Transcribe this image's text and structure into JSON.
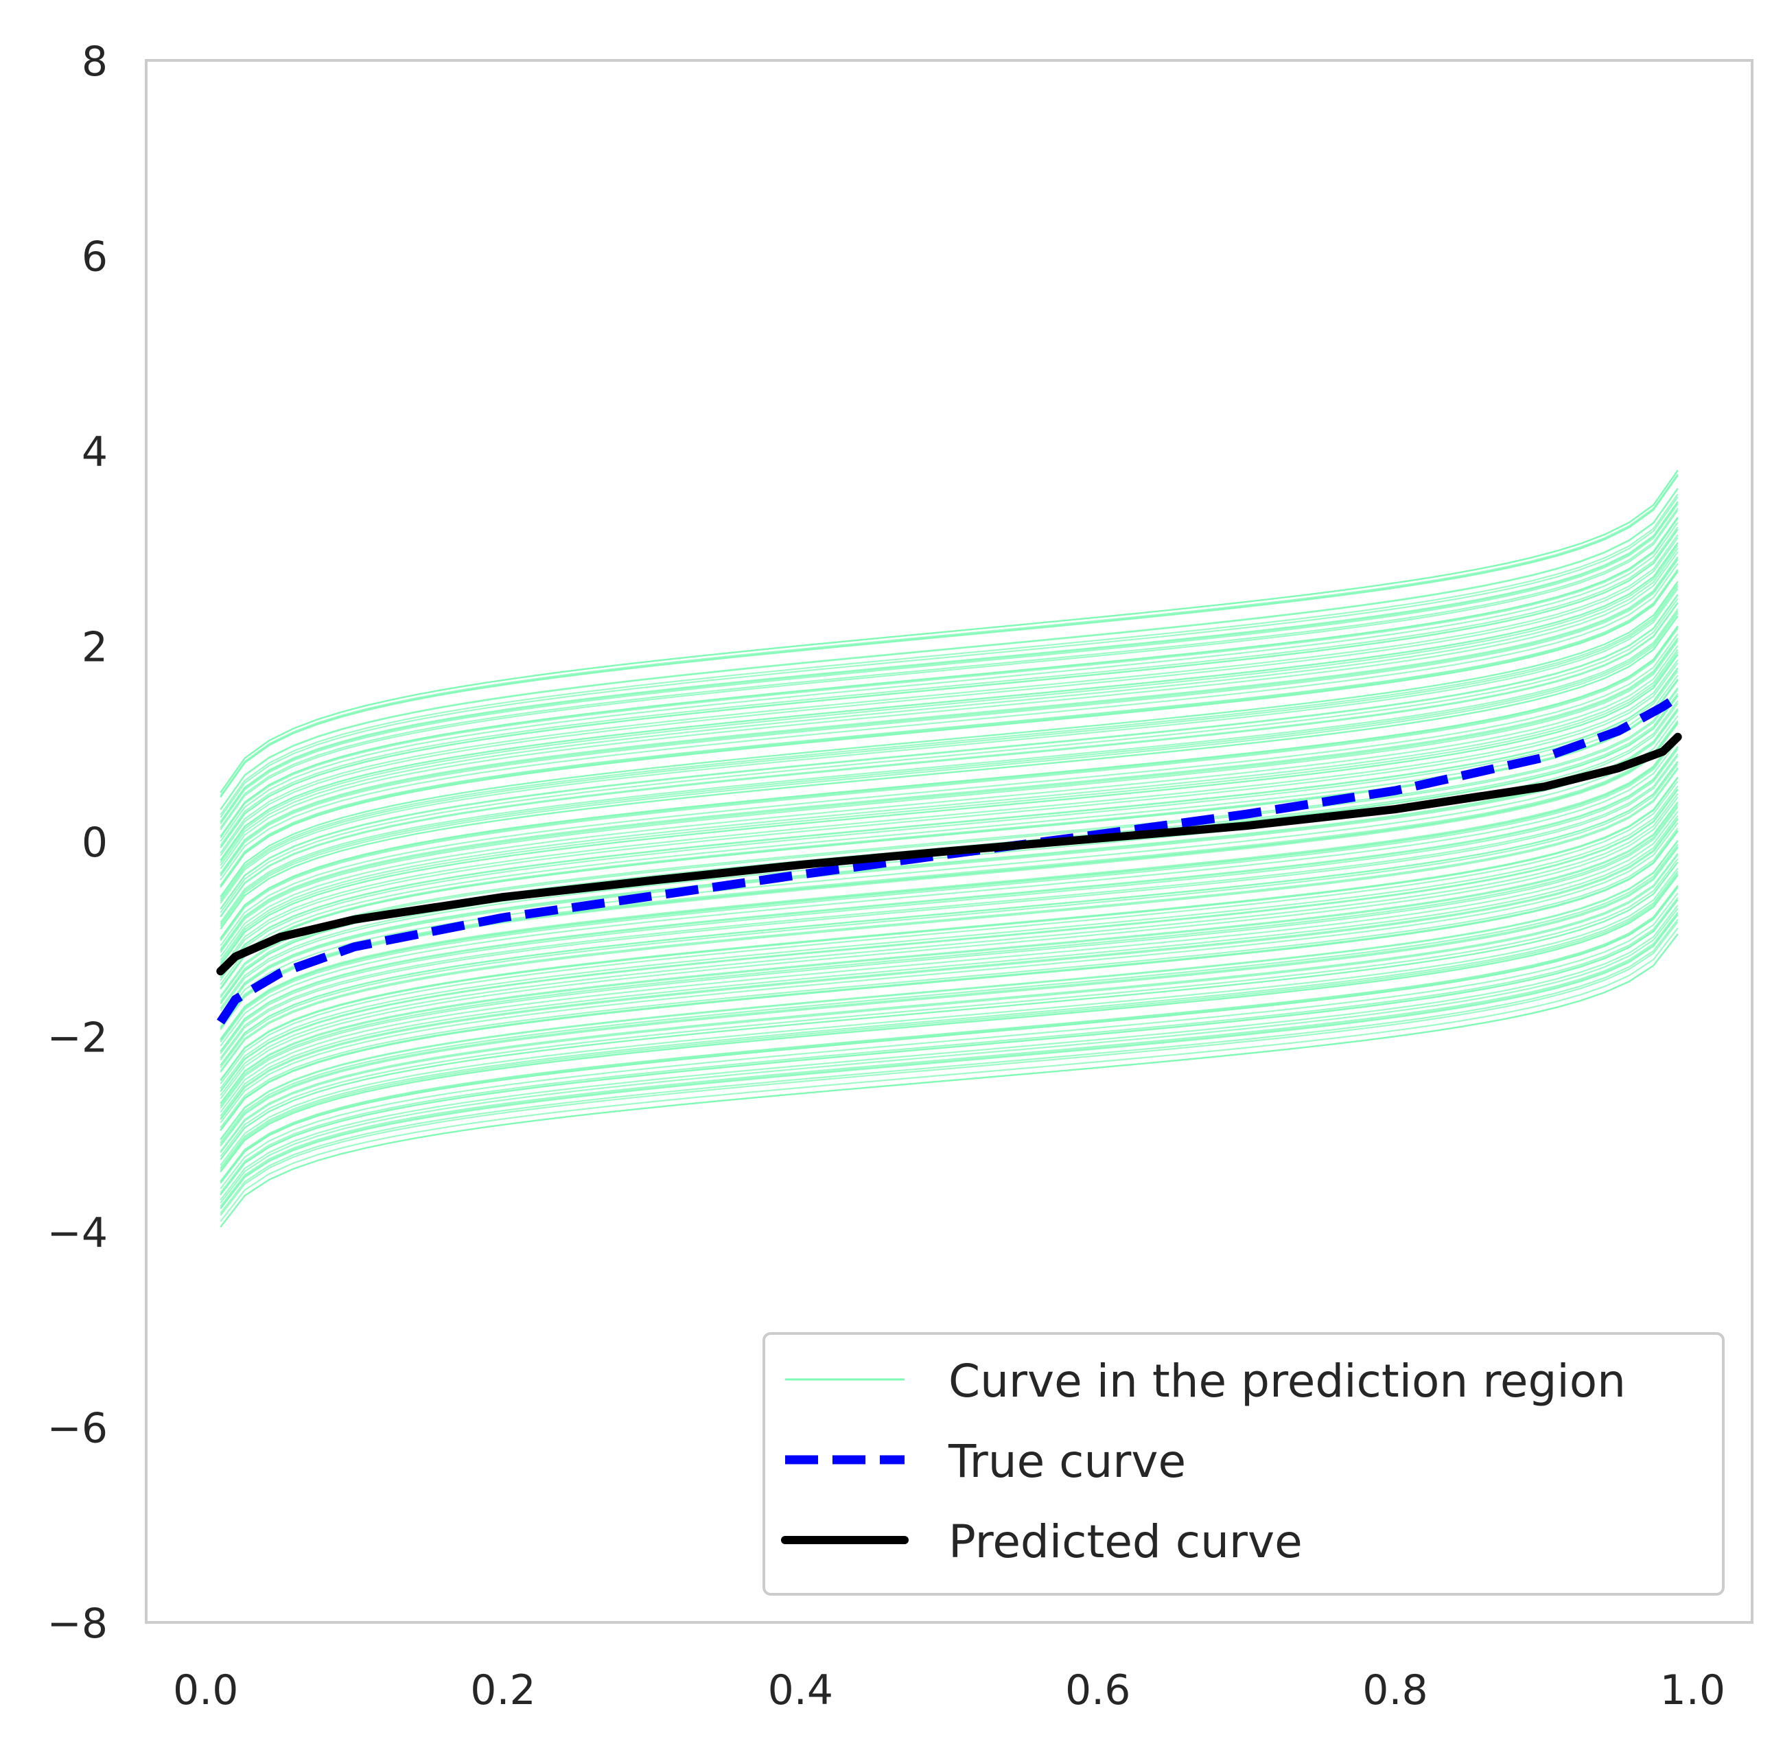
{
  "chart_data": {
    "type": "line",
    "title": "",
    "xlabel": "",
    "ylabel": "",
    "xlim": [
      -0.04,
      1.04
    ],
    "ylim": [
      -8,
      8
    ],
    "xticks": [
      0.0,
      0.2,
      0.4,
      0.6,
      0.8,
      1.0
    ],
    "xtick_labels": [
      "0.0",
      "0.2",
      "0.4",
      "0.6",
      "0.8",
      "1.0"
    ],
    "yticks": [
      -8,
      -6,
      -4,
      -2,
      0,
      2,
      4,
      6,
      8
    ],
    "ytick_labels": [
      "−8",
      "−6",
      "−4",
      "−2",
      "0",
      "2",
      "4",
      "6",
      "8"
    ],
    "grid": false,
    "legend_position": "lower-right",
    "x": [
      0.01,
      0.02,
      0.05,
      0.1,
      0.2,
      0.3,
      0.4,
      0.5,
      0.6,
      0.7,
      0.8,
      0.9,
      0.95,
      0.98,
      0.99
    ],
    "series": [
      {
        "name": "Curve in the prediction region",
        "style": "band",
        "color": "#7dfab4",
        "curve_count": 160,
        "upper_start": 0.5,
        "upper_end": 3.8,
        "lower_start": -3.95,
        "lower_end": -0.95
      },
      {
        "name": "True curve",
        "style": "dashed",
        "color": "#0000ff",
        "values": [
          -1.85,
          -1.62,
          -1.35,
          -1.08,
          -0.78,
          -0.56,
          -0.34,
          -0.13,
          0.07,
          0.28,
          0.52,
          0.86,
          1.13,
          1.38,
          1.48
        ]
      },
      {
        "name": "Predicted curve",
        "style": "solid",
        "color": "#000000",
        "values": [
          -1.33,
          -1.18,
          -0.98,
          -0.8,
          -0.57,
          -0.4,
          -0.24,
          -0.1,
          0.03,
          0.16,
          0.33,
          0.56,
          0.75,
          0.92,
          1.07
        ]
      }
    ]
  }
}
